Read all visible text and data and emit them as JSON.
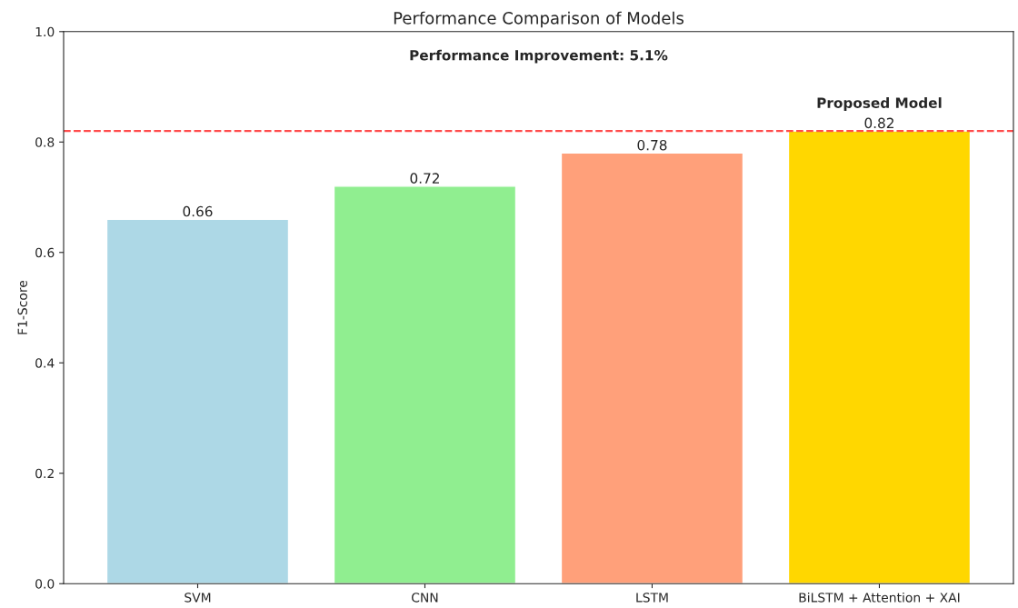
{
  "chart_data": {
    "type": "bar",
    "title": "Performance Comparison of Models",
    "ylabel": "F1-Score",
    "categories": [
      "SVM",
      "CNN",
      "LSTM",
      "BiLSTM + Attention + XAI"
    ],
    "values": [
      0.66,
      0.72,
      0.78,
      0.82
    ],
    "colors": [
      "#add8e6",
      "#90ee90",
      "#ffa07a",
      "#ffd700"
    ],
    "ylim": [
      0,
      1
    ],
    "yticks": [
      {
        "value": 0,
        "label": "0.0"
      },
      0.2,
      0.4,
      0.6,
      0.8,
      {
        "value": 1,
        "label": "1.0"
      }
    ],
    "data_labels": true,
    "grid": false,
    "ref_lines": [
      {
        "axis": "y",
        "value": 0.82,
        "color": "#ff4c4c",
        "line_style": "dashed"
      }
    ],
    "annotations": [
      "Performance Improvement: 5.1%",
      {
        "text": "Proposed Model",
        "x": "BiLSTM + Attention + XAI",
        "y": 0.82
      }
    ]
  }
}
